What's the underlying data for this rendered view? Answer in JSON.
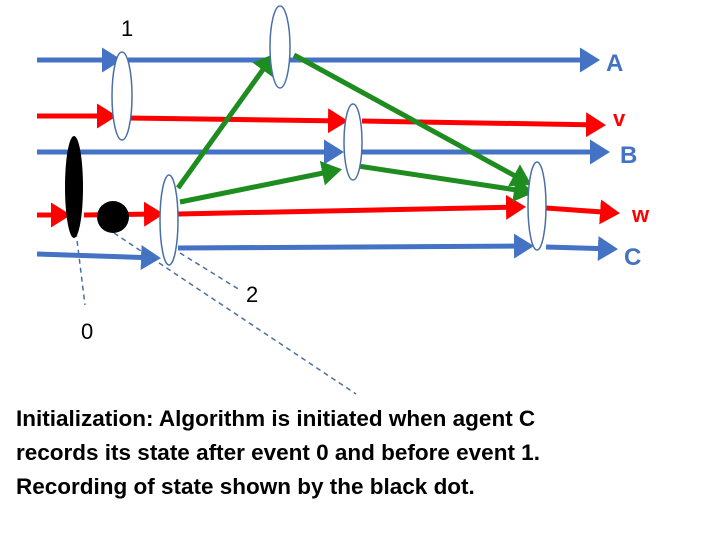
{
  "labels": {
    "line_a": "A",
    "line_v": "v",
    "line_b": "B",
    "line_w": "w",
    "line_c": "C"
  },
  "events": {
    "e0": "0",
    "e1": "1",
    "e2": "2"
  },
  "colors": {
    "agent": "#4472C4",
    "channel": "#FF0000",
    "message": "#1E8C1E",
    "event": "#4A6FA5",
    "dot": "#000000"
  },
  "caption": {
    "line1": "Initialization: Algorithm is initiated when agent C",
    "line2": "records its state after event 0 and before event 1.",
    "line3": "Recording of state shown by the black dot."
  }
}
